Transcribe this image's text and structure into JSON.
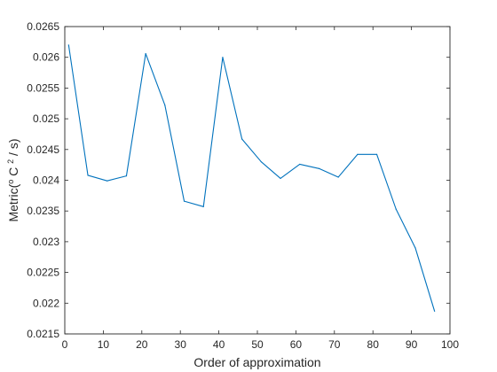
{
  "chart_data": {
    "type": "line",
    "title": "",
    "xlabel": "Order of approximation",
    "ylabel": {
      "prefix": "Metric(",
      "sup1": "o",
      "mid": " C ",
      "sup2": "2",
      "suffix": " / s)"
    },
    "xlim": [
      0,
      100
    ],
    "ylim": [
      0.0215,
      0.0265
    ],
    "xticks": [
      0,
      10,
      20,
      30,
      40,
      50,
      60,
      70,
      80,
      90,
      100
    ],
    "xtick_labels": [
      "0",
      "10",
      "20",
      "30",
      "40",
      "50",
      "60",
      "70",
      "80",
      "90",
      "100"
    ],
    "yticks": [
      0.0215,
      0.022,
      0.0225,
      0.023,
      0.0235,
      0.024,
      0.0245,
      0.025,
      0.0255,
      0.026,
      0.0265
    ],
    "ytick_labels": [
      "0.0215",
      "0.022",
      "0.0225",
      "0.023",
      "0.0235",
      "0.024",
      "0.0245",
      "0.025",
      "0.0255",
      "0.026",
      "0.0265"
    ],
    "grid": false,
    "line_color": "#0072BD",
    "series": [
      {
        "x": [
          1,
          6,
          11,
          16,
          21,
          26,
          31,
          36,
          41,
          46,
          51,
          56,
          61,
          66,
          71,
          76,
          81,
          86,
          91,
          96
        ],
        "y": [
          0.0262,
          0.02408,
          0.02399,
          0.02407,
          0.02606,
          0.02522,
          0.02366,
          0.02357,
          0.026,
          0.02467,
          0.0243,
          0.02403,
          0.02426,
          0.02419,
          0.02405,
          0.02442,
          0.02442,
          0.02353,
          0.0229,
          0.02187
        ]
      }
    ]
  }
}
